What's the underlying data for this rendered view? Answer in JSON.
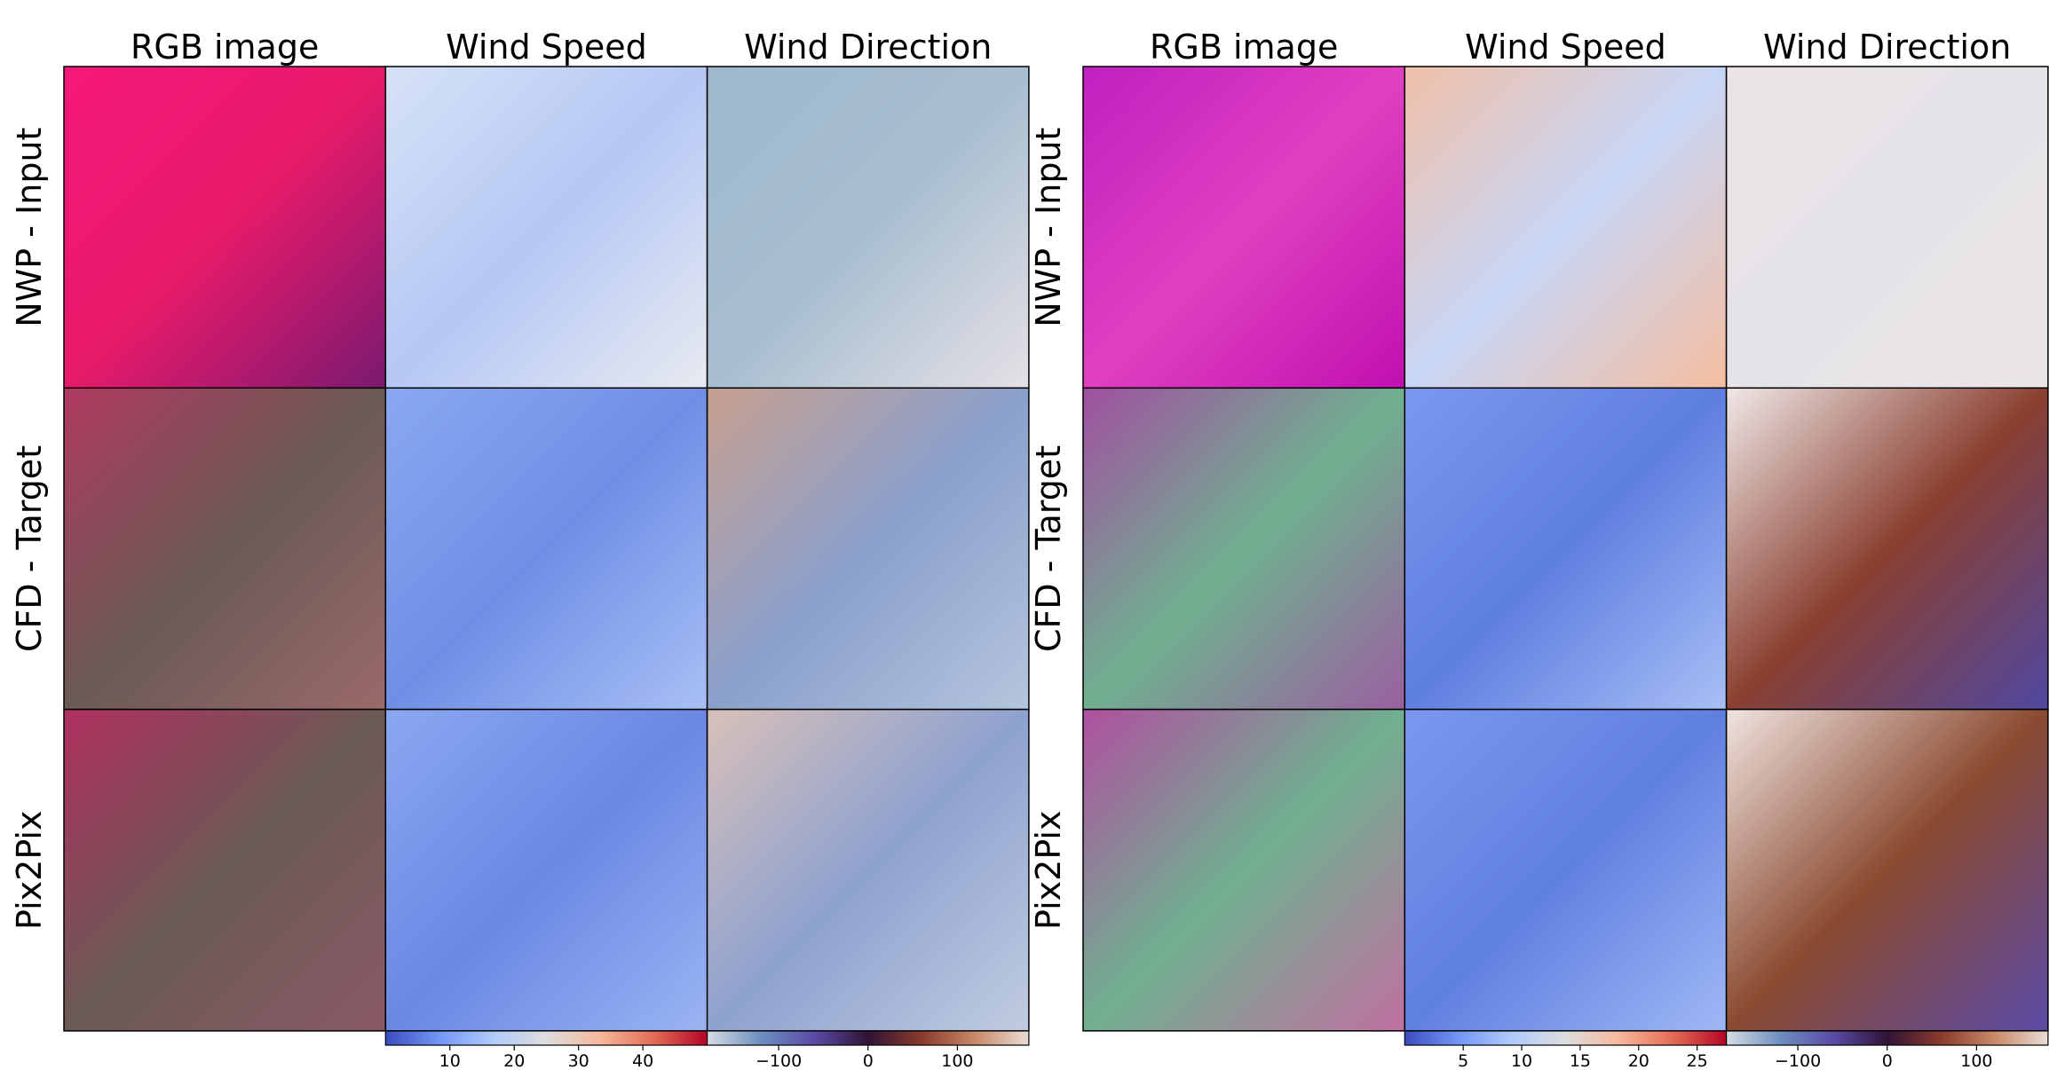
{
  "figures": [
    {
      "columns": [
        "RGB image",
        "Wind Speed",
        "Wind Direction"
      ],
      "rows": [
        "NWP - Input",
        "CFD - Target",
        "Pix2Pix"
      ],
      "speed_colorbar": {
        "lim": [
          0,
          50
        ],
        "ticks": [
          10,
          20,
          30,
          40
        ],
        "colormap": [
          "#3b4cc0",
          "#7396f5",
          "#b0cbfc",
          "#dddddd",
          "#f6b89c",
          "#e36c55",
          "#b40426"
        ]
      },
      "direction_colorbar": {
        "lim": [
          -180,
          180
        ],
        "ticks": [
          {
            "value": -100,
            "label": "−100"
          },
          0,
          100
        ],
        "colormap": [
          "#d6dde4",
          "#6d8fc0",
          "#5a4aa5",
          "#2f1436",
          "#8a3a2c",
          "#c88a68",
          "#e8dcd6"
        ]
      }
    },
    {
      "columns": [
        "RGB image",
        "Wind Speed",
        "Wind Direction"
      ],
      "rows": [
        "NWP - Input",
        "CFD - Target",
        "Pix2Pix"
      ],
      "speed_colorbar": {
        "lim": [
          0,
          27.5
        ],
        "ticks": [
          5,
          10,
          15,
          20,
          25
        ],
        "colormap": [
          "#3b4cc0",
          "#7396f5",
          "#b0cbfc",
          "#dddddd",
          "#f6b89c",
          "#e36c55",
          "#b40426"
        ]
      },
      "direction_colorbar": {
        "lim": [
          -180,
          180
        ],
        "ticks": [
          {
            "value": -100,
            "label": "−100"
          },
          0,
          100
        ],
        "colormap": [
          "#d6dde4",
          "#6d8fc0",
          "#5a4aa5",
          "#2f1436",
          "#8a3a2c",
          "#c88a68",
          "#e8dcd6"
        ]
      }
    }
  ]
}
